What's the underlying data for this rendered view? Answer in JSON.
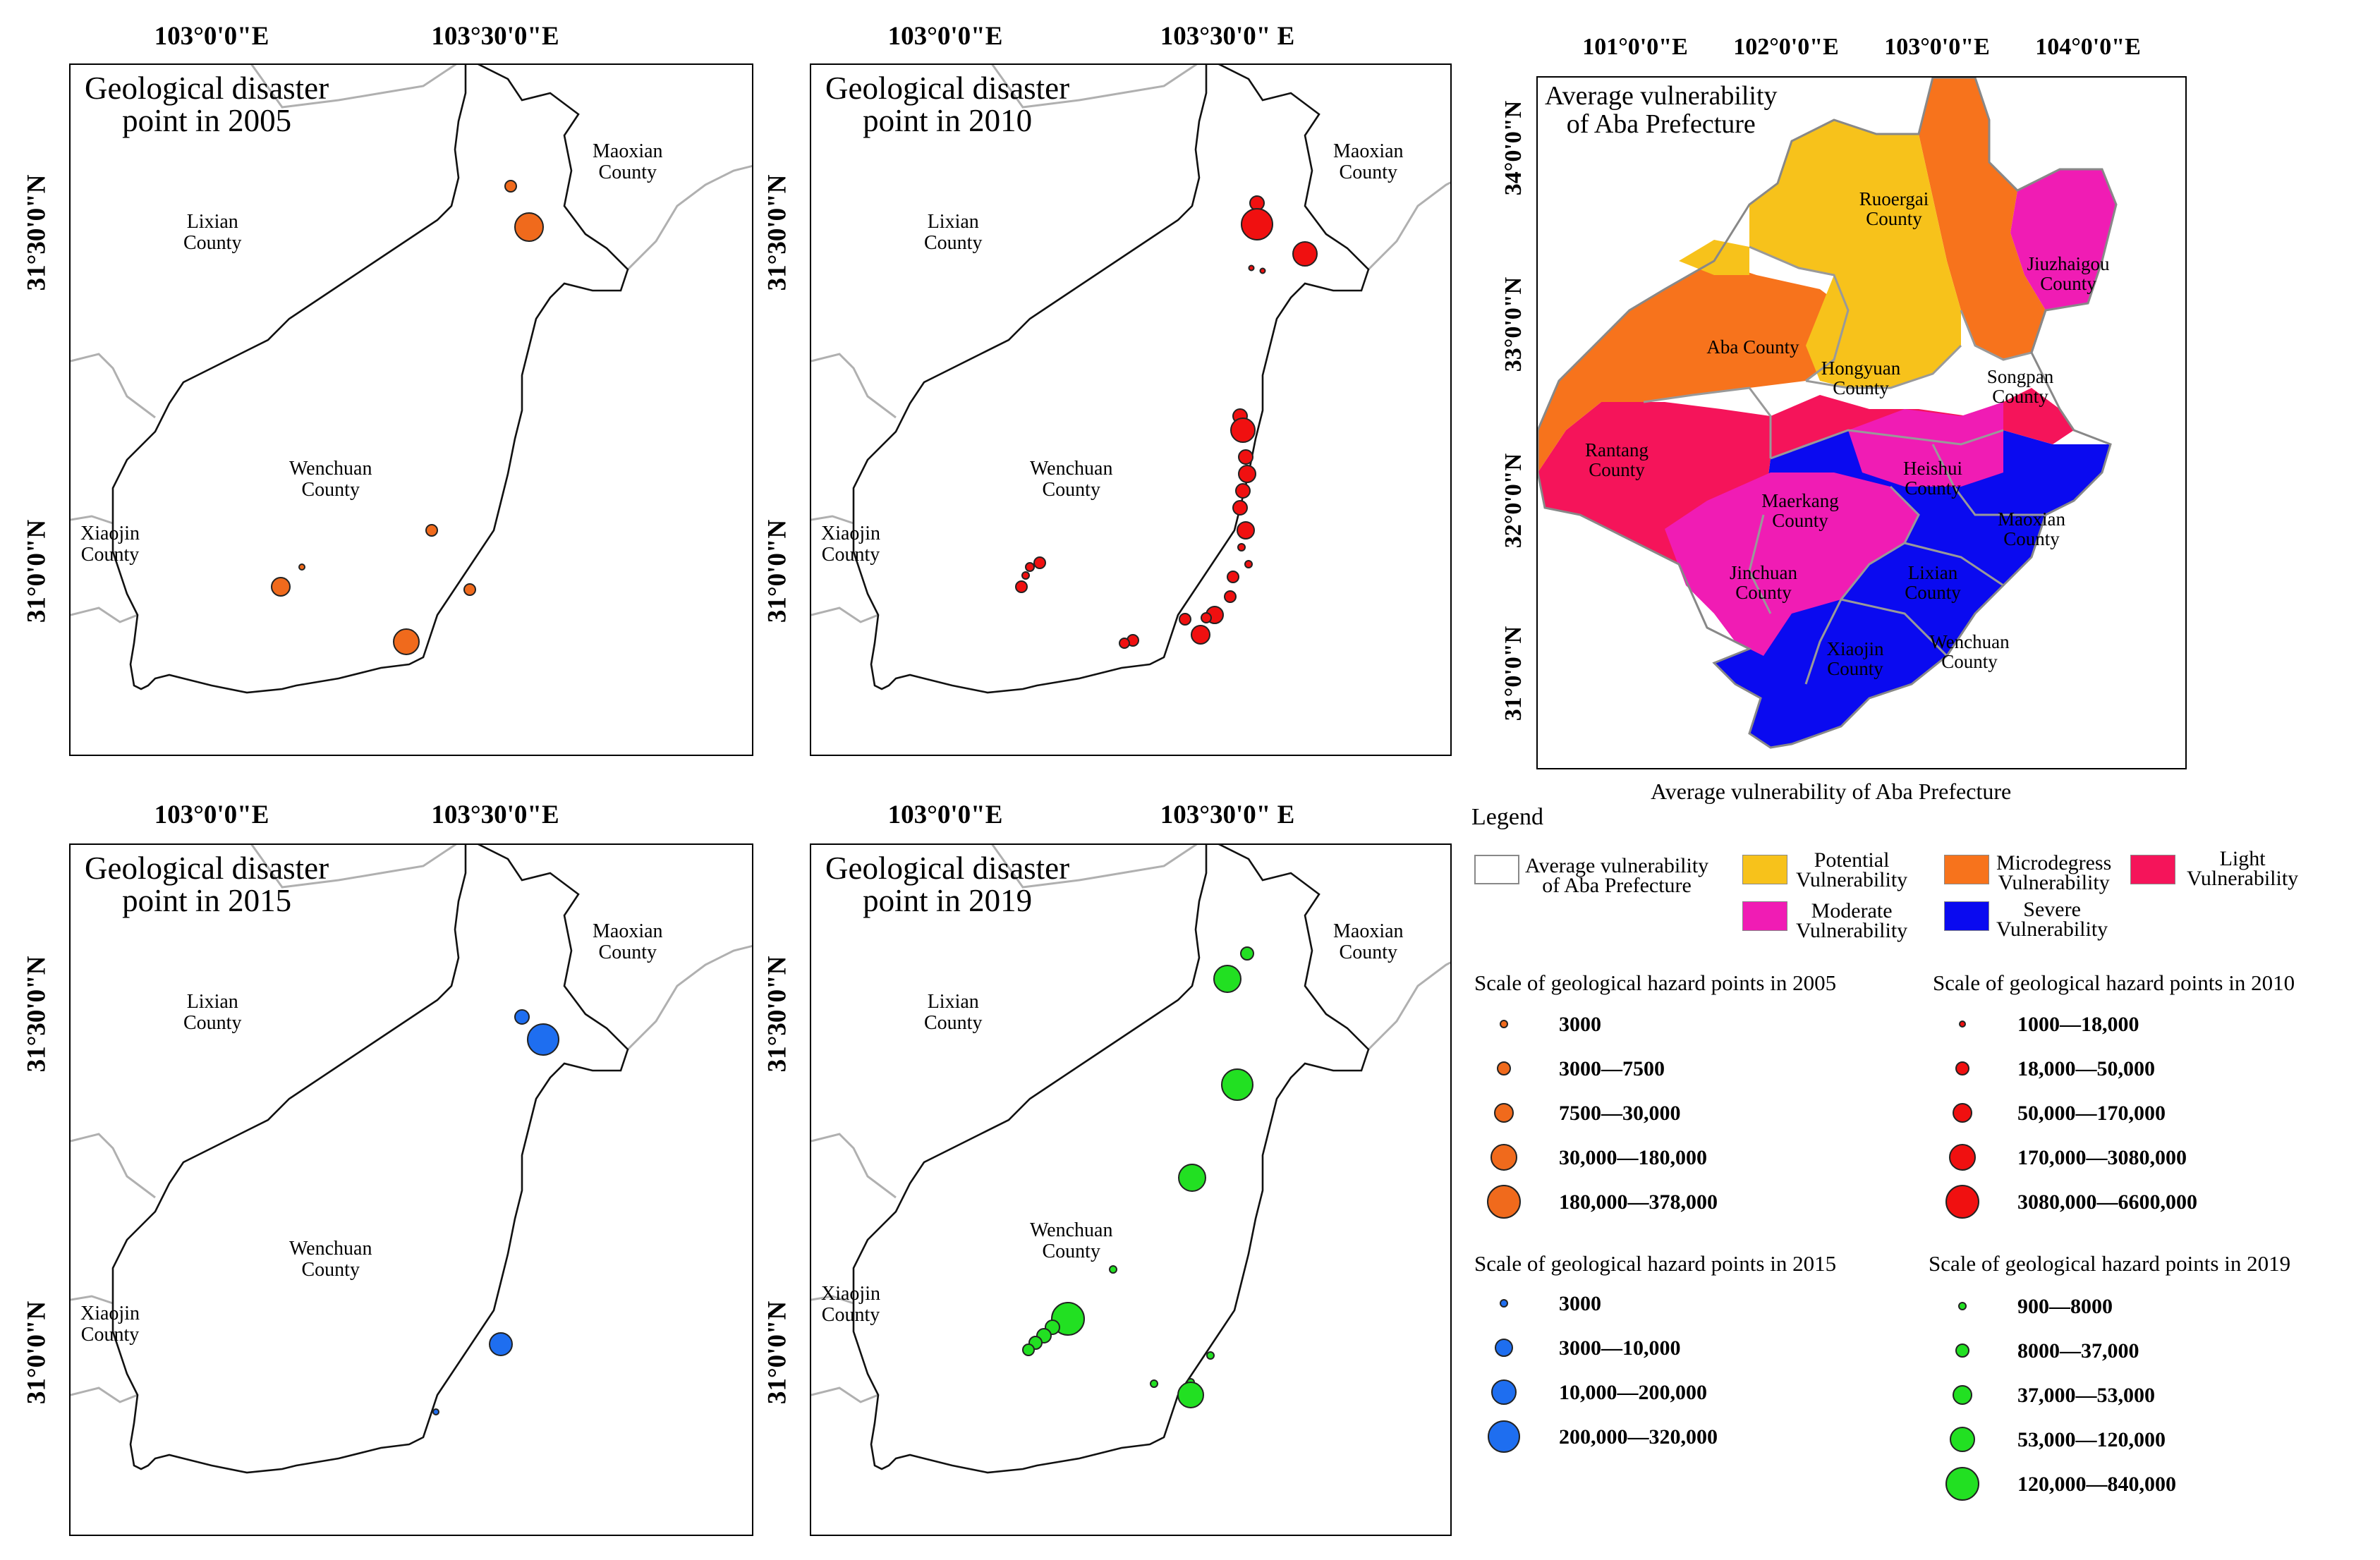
{
  "map_panels": [
    {
      "title": "Geological disaster\npoint in 2005",
      "top_lon_labels": [
        "103°0'0\"E",
        "103°30'0\"E"
      ],
      "lat_labels": [
        "31°30'0\"N",
        "31°0'0\"N"
      ],
      "county_labels": {
        "lixian": "Lixian\nCounty",
        "maoxian": "Maoxian\nCounty",
        "wenchuan": "Wenchuan\nCounty",
        "xiaojin": "Xiaojin\nCounty"
      },
      "point_color": "#f06a1c"
    },
    {
      "title": "Geological disaster\npoint in 2010",
      "top_lon_labels": [
        "103°0'0\"E",
        "103°30'0\" E"
      ],
      "lat_labels": [
        "31°30'0\"N",
        "31°0'0\"N"
      ],
      "county_labels": {
        "lixian": "Lixian\nCounty",
        "maoxian": "Maoxian\nCounty",
        "wenchuan": "Wenchuan\nCounty",
        "xiaojin": "Xiaojin\nCounty"
      },
      "point_color": "#f01010"
    },
    {
      "title": "Geological disaster\npoint in 2015",
      "top_lon_labels": [
        "103°0'0\"E",
        "103°30'0\"E"
      ],
      "lat_labels": [
        "31°30'0\"N",
        "31°0'0\"N"
      ],
      "county_labels": {
        "lixian": "Lixian\nCounty",
        "maoxian": "Maoxian\nCounty",
        "wenchuan": "Wenchuan\nCounty",
        "xiaojin": "Xiaojin\nCounty"
      },
      "point_color": "#1e6ef0"
    },
    {
      "title": "Geological disaster\npoint in 2019",
      "top_lon_labels": [
        "103°0'0\"E",
        "103°30'0\" E"
      ],
      "lat_labels": [
        "31°30'0\"N",
        "31°0'0\"N"
      ],
      "county_labels": {
        "lixian": "Lixian\nCounty",
        "maoxian": "Maoxian\nCounty",
        "wenchuan": "Wenchuan\nCounty",
        "xiaojin": "Xiaojin\nCounty"
      },
      "point_color": "#22e022"
    }
  ],
  "vulnerability_map": {
    "title": "Average vulnerability\nof Aba Prefecture",
    "caption": "Average vulnerability of Aba Prefecture",
    "top_lon_labels": [
      "101°0'0\"E",
      "102°0'0\"E",
      "103°0'0\"E",
      "104°0'0\"E"
    ],
    "lat_labels": [
      "34°0'0\"N",
      "33°0'0\"N",
      "32°0'0\"N",
      "31°0'0\"N"
    ],
    "county_labels": [
      "Ruoergai\nCounty",
      "Jiuzhaigou\nCounty",
      "Aba County",
      "Hongyuan\nCounty",
      "Songpan\nCounty",
      "Rantang\nCounty",
      "Heishui\nCounty",
      "Maerkang\nCounty",
      "Maoxian\nCounty",
      "Jinchuan\nCounty",
      "Lixian\nCounty",
      "Xiaojin\nCounty",
      "Wenchuan\nCounty"
    ]
  },
  "legend": {
    "title": "Legend",
    "outline_label": "Average vulnerability\nof Aba Prefecture",
    "classes": [
      {
        "label": "Potential\nVulnerability",
        "color": "#f7c21b"
      },
      {
        "label": "Microdegress\nVulnerability",
        "color": "#f7731c"
      },
      {
        "label": "Light\nVulnerability",
        "color": "#f5145a"
      },
      {
        "label": "Moderate\nVulnerability",
        "color": "#f01cb4"
      },
      {
        "label": "Severe\nVulnerability",
        "color": "#0a0af0"
      }
    ],
    "scales": [
      {
        "title": "Scale of geological hazard points in 2005",
        "color": "#f06a1c",
        "items": [
          "3000",
          "3000—7500",
          "7500—30,000",
          "30,000—180,000",
          "180,000—378,000"
        ]
      },
      {
        "title": "Scale of geological hazard points in 2010",
        "color": "#f01010",
        "items": [
          "1000—18,000",
          "18,000—50,000",
          "50,000—170,000",
          "170,000—3080,000",
          "3080,000—6600,000"
        ]
      },
      {
        "title": "Scale of geological hazard points in 2015",
        "color": "#1e6ef0",
        "items": [
          "3000",
          "3000—10,000",
          "10,000—200,000",
          "200,000—320,000"
        ]
      },
      {
        "title": "Scale of geological hazard points in 2019",
        "color": "#22e022",
        "items": [
          "900—8000",
          "8000—37,000",
          "37,000—53,000",
          "53,000—120,000",
          "120,000—840,000"
        ]
      }
    ]
  }
}
